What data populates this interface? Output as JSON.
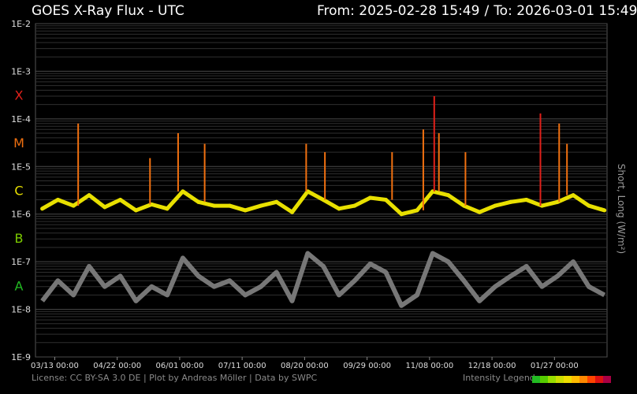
{
  "header": {
    "title": "GOES X-Ray Flux - UTC",
    "from_label": "From: 2025-02-28 15:49",
    "separator": "/",
    "to_label": "To: 2026-03-01 15:49"
  },
  "footer": {
    "credits": "License: CC BY-SA 3.0 DE | Plot by Andreas Möller | Data by SWPC",
    "legend_label": "Intensity Legend"
  },
  "side_label": "Short, Long (W/m²)",
  "colors": {
    "background": "#000000",
    "grid": "#2f2f2f",
    "short_channel": "#777777",
    "class_X": "#e0201a",
    "class_M": "#f07010",
    "class_C": "#e8e000",
    "class_B": "#7ccc00",
    "class_A": "#22bb22"
  },
  "legend_colors": [
    "#22bb22",
    "#55cc00",
    "#99dd00",
    "#ccdd00",
    "#eedd00",
    "#ffbb00",
    "#ff8800",
    "#ff4400",
    "#dd1111",
    "#aa0044"
  ],
  "chart_data": {
    "type": "line",
    "title": "GOES X-Ray Flux - UTC",
    "ylabel": "Short, Long (W/m²)",
    "yscale": "log",
    "ylim": [
      1e-09,
      0.01
    ],
    "y_ticks": [
      "1E-9",
      "1E-8",
      "1E-7",
      "1E-6",
      "1E-5",
      "1E-4",
      "1E-3",
      "1E-2"
    ],
    "flare_classes": [
      "A",
      "B",
      "C",
      "M",
      "X"
    ],
    "x_ticks": [
      "03/13 00:00",
      "04/22 00:00",
      "06/01 00:00",
      "07/11 00:00",
      "08/20 00:00",
      "09/29 00:00",
      "11/08 00:00",
      "12/18 00:00",
      "01/27 00:00"
    ],
    "xlim": [
      "2025-02-28 15:49",
      "2026-03-01 15:49"
    ],
    "grid": true,
    "series": [
      {
        "name": "Long",
        "x": [
          "2025-03-05",
          "2025-03-15",
          "2025-03-25",
          "2025-04-04",
          "2025-04-14",
          "2025-04-24",
          "2025-05-04",
          "2025-05-14",
          "2025-05-24",
          "2025-06-03",
          "2025-06-13",
          "2025-06-23",
          "2025-07-03",
          "2025-07-13",
          "2025-07-23",
          "2025-08-02",
          "2025-08-12",
          "2025-08-22",
          "2025-09-01",
          "2025-09-11",
          "2025-09-21",
          "2025-10-01",
          "2025-10-11",
          "2025-10-21",
          "2025-10-31",
          "2025-11-10",
          "2025-11-20",
          "2025-11-30",
          "2025-12-10",
          "2025-12-20",
          "2025-12-30",
          "2026-01-09",
          "2026-01-19",
          "2026-01-29",
          "2026-02-08",
          "2026-02-18",
          "2026-02-28"
        ],
        "values": [
          1.3e-06,
          2e-06,
          1.5e-06,
          2.5e-06,
          1.4e-06,
          2e-06,
          1.2e-06,
          1.6e-06,
          1.3e-06,
          3e-06,
          1.8e-06,
          1.5e-06,
          1.5e-06,
          1.2e-06,
          1.5e-06,
          1.8e-06,
          1.1e-06,
          3e-06,
          2e-06,
          1.3e-06,
          1.5e-06,
          2.2e-06,
          2e-06,
          1e-06,
          1.2e-06,
          3e-06,
          2.5e-06,
          1.5e-06,
          1.1e-06,
          1.5e-06,
          1.8e-06,
          2e-06,
          1.5e-06,
          1.8e-06,
          2.5e-06,
          1.5e-06,
          1.2e-06
        ]
      },
      {
        "name": "Short",
        "x": [
          "2025-03-05",
          "2025-03-15",
          "2025-03-25",
          "2025-04-04",
          "2025-04-14",
          "2025-04-24",
          "2025-05-04",
          "2025-05-14",
          "2025-05-24",
          "2025-06-03",
          "2025-06-13",
          "2025-06-23",
          "2025-07-03",
          "2025-07-13",
          "2025-07-23",
          "2025-08-02",
          "2025-08-12",
          "2025-08-22",
          "2025-09-01",
          "2025-09-11",
          "2025-09-21",
          "2025-10-01",
          "2025-10-11",
          "2025-10-21",
          "2025-10-31",
          "2025-11-10",
          "2025-11-20",
          "2025-11-30",
          "2025-12-10",
          "2025-12-20",
          "2025-12-30",
          "2026-01-09",
          "2026-01-19",
          "2026-01-29",
          "2026-02-08",
          "2026-02-18",
          "2026-02-28"
        ],
        "values": [
          1.5e-08,
          4e-08,
          2e-08,
          8e-08,
          3e-08,
          5e-08,
          1.5e-08,
          3e-08,
          2e-08,
          1.2e-07,
          5e-08,
          3e-08,
          4e-08,
          2e-08,
          3e-08,
          6e-08,
          1.5e-08,
          1.5e-07,
          8e-08,
          2e-08,
          4e-08,
          9e-08,
          6e-08,
          1.2e-08,
          2e-08,
          1.5e-07,
          1e-07,
          4e-08,
          1.5e-08,
          3e-08,
          5e-08,
          8e-08,
          3e-08,
          5e-08,
          1e-07,
          3e-08,
          2e-08
        ]
      }
    ],
    "peaks": [
      {
        "date": "2025-03-28",
        "value": 8e-05
      },
      {
        "date": "2025-05-13",
        "value": 1.5e-05
      },
      {
        "date": "2025-05-31",
        "value": 5e-05
      },
      {
        "date": "2025-06-17",
        "value": 3e-05
      },
      {
        "date": "2025-08-21",
        "value": 3e-05
      },
      {
        "date": "2025-09-02",
        "value": 2e-05
      },
      {
        "date": "2025-10-15",
        "value": 2e-05
      },
      {
        "date": "2025-11-04",
        "value": 6e-05
      },
      {
        "date": "2025-11-11",
        "value": 0.0003
      },
      {
        "date": "2025-11-14",
        "value": 5e-05
      },
      {
        "date": "2025-12-01",
        "value": 2e-05
      },
      {
        "date": "2026-01-18",
        "value": 0.00013
      },
      {
        "date": "2026-01-30",
        "value": 8e-05
      },
      {
        "date": "2026-02-04",
        "value": 3e-05
      }
    ]
  }
}
